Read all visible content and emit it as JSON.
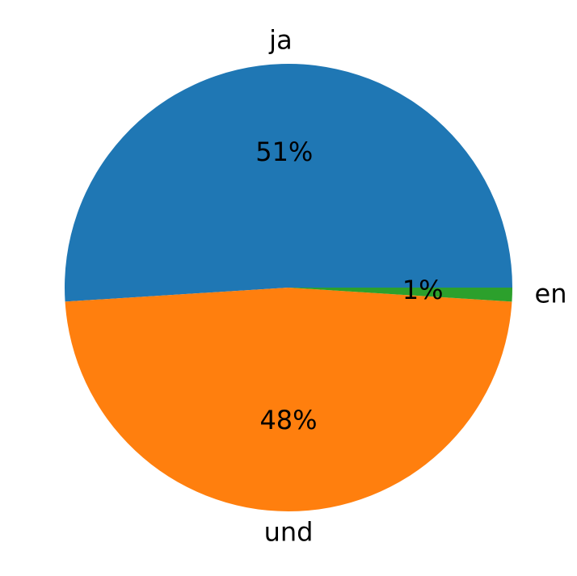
{
  "chart_data": {
    "type": "pie",
    "title": "",
    "start_angle_deg": 0,
    "direction": "counterclockwise",
    "legend": "none",
    "slices": [
      {
        "label": "ja",
        "value": 51,
        "pct_label": "51%",
        "color": "#1f77b4"
      },
      {
        "label": "und",
        "value": 48,
        "pct_label": "48%",
        "color": "#ff7f0e"
      },
      {
        "label": "en",
        "value": 1,
        "pct_label": "1%",
        "color": "#2ca02c"
      }
    ]
  }
}
